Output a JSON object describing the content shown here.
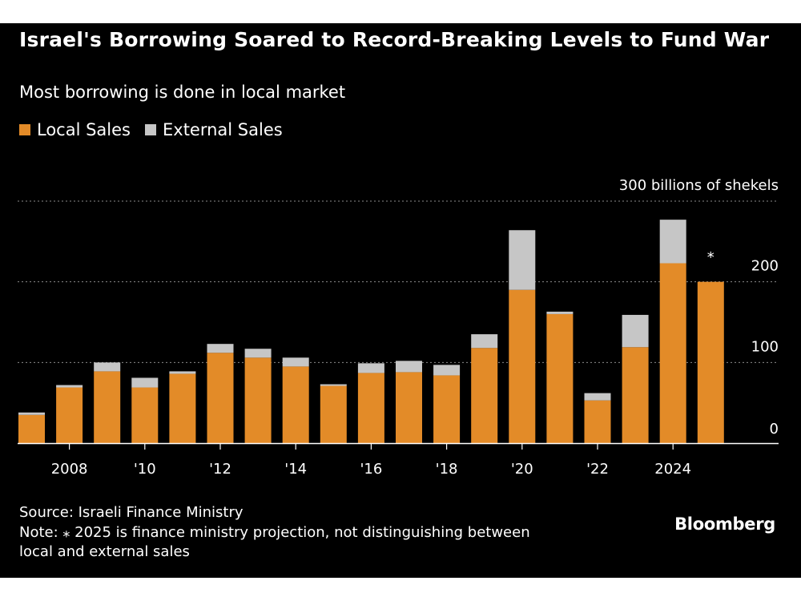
{
  "title": "Israel's Borrowing Soared to Record-Breaking Levels to Fund War",
  "subtitle": "Most borrowing is done in local market",
  "legend": {
    "local": "Local Sales",
    "external": "External Sales"
  },
  "source": "Source: Israeli Finance Ministry",
  "note_line1": "Note: ⁎ 2025 is finance ministry projection, not distinguishing between",
  "note_line2": "local and external sales",
  "brand": "Bloomberg",
  "colors": {
    "local": "#E38B28",
    "external": "#C6C6C6",
    "background": "#000000",
    "text": "#FFFFFF",
    "grid": "#8C8C8C"
  },
  "chart_data": {
    "type": "bar",
    "stacked": true,
    "categories": [
      "2007",
      "2008",
      "2009",
      "2010",
      "2011",
      "2012",
      "2013",
      "2014",
      "2015",
      "2016",
      "2017",
      "2018",
      "2019",
      "2020",
      "2021",
      "2022",
      "2023",
      "2024",
      "2025"
    ],
    "series": [
      {
        "name": "Local Sales",
        "values": [
          35,
          69,
          89,
          69,
          86,
          112,
          106,
          95,
          71,
          87,
          88,
          84,
          118,
          190,
          160,
          53,
          119,
          223,
          200
        ]
      },
      {
        "name": "External Sales",
        "values": [
          3,
          3,
          11,
          12,
          3,
          11,
          11,
          11,
          2,
          12,
          14,
          13,
          17,
          74,
          3,
          9,
          40,
          54,
          0
        ]
      }
    ],
    "annotation": {
      "category": "2025",
      "text": "⁎"
    },
    "x_tick_labels": [
      {
        "category": "2008",
        "label": "2008"
      },
      {
        "category": "2010",
        "label": "'10"
      },
      {
        "category": "2012",
        "label": "'12"
      },
      {
        "category": "2014",
        "label": "'14"
      },
      {
        "category": "2016",
        "label": "'16"
      },
      {
        "category": "2018",
        "label": "'18"
      },
      {
        "category": "2020",
        "label": "'20"
      },
      {
        "category": "2022",
        "label": "'22"
      },
      {
        "category": "2024",
        "label": "2024"
      }
    ],
    "y_ticks": [
      {
        "value": 0,
        "label": "0"
      },
      {
        "value": 100,
        "label": "100"
      },
      {
        "value": 200,
        "label": "200"
      },
      {
        "value": 300,
        "label": "300 billions of shekels"
      }
    ],
    "ylim": [
      0,
      300
    ],
    "grid": true,
    "y_axis_position": "right"
  }
}
